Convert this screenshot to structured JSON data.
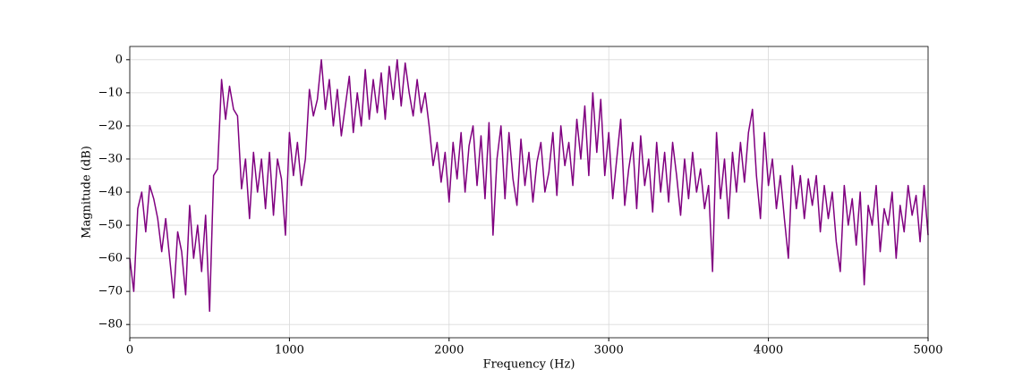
{
  "chart_data": {
    "type": "line",
    "xlabel": "Frequency (Hz)",
    "ylabel": "Magnitude (dB)",
    "x": [
      0,
      25,
      50,
      75,
      100,
      125,
      150,
      175,
      200,
      225,
      250,
      275,
      300,
      325,
      350,
      375,
      400,
      425,
      450,
      475,
      500,
      525,
      550,
      575,
      600,
      625,
      650,
      675,
      700,
      725,
      750,
      775,
      800,
      825,
      850,
      875,
      900,
      925,
      950,
      975,
      1000,
      1025,
      1050,
      1075,
      1100,
      1125,
      1150,
      1175,
      1200,
      1225,
      1250,
      1275,
      1300,
      1325,
      1350,
      1375,
      1400,
      1425,
      1450,
      1475,
      1500,
      1525,
      1550,
      1575,
      1600,
      1625,
      1650,
      1675,
      1700,
      1725,
      1750,
      1775,
      1800,
      1825,
      1850,
      1875,
      1900,
      1925,
      1950,
      1975,
      2000,
      2025,
      2050,
      2075,
      2100,
      2125,
      2150,
      2175,
      2200,
      2225,
      2250,
      2275,
      2300,
      2325,
      2350,
      2375,
      2400,
      2425,
      2450,
      2475,
      2500,
      2525,
      2550,
      2575,
      2600,
      2625,
      2650,
      2675,
      2700,
      2725,
      2750,
      2775,
      2800,
      2825,
      2850,
      2875,
      2900,
      2925,
      2950,
      2975,
      3000,
      3025,
      3050,
      3075,
      3100,
      3125,
      3150,
      3175,
      3200,
      3225,
      3250,
      3275,
      3300,
      3325,
      3350,
      3375,
      3400,
      3425,
      3450,
      3475,
      3500,
      3525,
      3550,
      3575,
      3600,
      3625,
      3650,
      3675,
      3700,
      3725,
      3750,
      3775,
      3800,
      3825,
      3850,
      3875,
      3900,
      3925,
      3950,
      3975,
      4000,
      4025,
      4050,
      4075,
      4100,
      4125,
      4150,
      4175,
      4200,
      4225,
      4250,
      4275,
      4300,
      4325,
      4350,
      4375,
      4400,
      4425,
      4450,
      4475,
      4500,
      4525,
      4550,
      4575,
      4600,
      4625,
      4650,
      4675,
      4700,
      4725,
      4750,
      4775,
      4800,
      4825,
      4850,
      4875,
      4900,
      4925,
      4950,
      4975,
      5000
    ],
    "series": [
      {
        "color": "#800080",
        "values": [
          -60,
          -70,
          -45,
          -40,
          -52,
          -38,
          -42,
          -48,
          -58,
          -48,
          -60,
          -72,
          -52,
          -58,
          -71,
          -44,
          -60,
          -50,
          -64,
          -47,
          -76,
          -35,
          -33,
          -6,
          -18,
          -8,
          -15,
          -17,
          -39,
          -30,
          -48,
          -28,
          -40,
          -30,
          -45,
          -28,
          -47,
          -30,
          -36,
          -53,
          -22,
          -35,
          -25,
          -38,
          -30,
          -9,
          -17,
          -12,
          0,
          -15,
          -6,
          -20,
          -9,
          -23,
          -14,
          -5,
          -22,
          -10,
          -20,
          -3,
          -18,
          -6,
          -16,
          -4,
          -18,
          -2,
          -12,
          0,
          -14,
          -1,
          -10,
          -17,
          -6,
          -16,
          -10,
          -20,
          -32,
          -25,
          -37,
          -28,
          -43,
          -25,
          -36,
          -22,
          -40,
          -26,
          -20,
          -38,
          -23,
          -42,
          -19,
          -53,
          -30,
          -20,
          -42,
          -22,
          -36,
          -44,
          -24,
          -38,
          -28,
          -43,
          -31,
          -25,
          -40,
          -34,
          -22,
          -41,
          -20,
          -32,
          -25,
          -38,
          -18,
          -30,
          -14,
          -35,
          -10,
          -28,
          -12,
          -35,
          -22,
          -42,
          -30,
          -18,
          -44,
          -33,
          -25,
          -45,
          -23,
          -38,
          -30,
          -46,
          -25,
          -40,
          -28,
          -43,
          -25,
          -35,
          -47,
          -30,
          -42,
          -28,
          -40,
          -33,
          -45,
          -38,
          -64,
          -22,
          -42,
          -30,
          -48,
          -28,
          -40,
          -25,
          -37,
          -22,
          -15,
          -35,
          -48,
          -22,
          -38,
          -30,
          -45,
          -35,
          -48,
          -60,
          -32,
          -45,
          -35,
          -48,
          -36,
          -44,
          -35,
          -52,
          -38,
          -48,
          -40,
          -55,
          -64,
          -38,
          -50,
          -42,
          -56,
          -40,
          -68,
          -44,
          -50,
          -38,
          -58,
          -45,
          -50,
          -40,
          -60,
          -44,
          -52,
          -38,
          -47,
          -41,
          -55,
          -38,
          -53
        ]
      }
    ],
    "xlim": [
      0,
      5000
    ],
    "xticks": [
      0,
      1000,
      2000,
      3000,
      4000,
      5000
    ],
    "ylim": [
      -84,
      4
    ],
    "yticks": [
      {
        "value": -80,
        "label": "−80"
      },
      {
        "value": -70,
        "label": "−70"
      },
      {
        "value": -60,
        "label": "−60"
      },
      {
        "value": -50,
        "label": "−50"
      },
      {
        "value": -40,
        "label": "−40"
      },
      {
        "value": -30,
        "label": "−30"
      },
      {
        "value": -20,
        "label": "−20"
      },
      {
        "value": -10,
        "label": "−10"
      },
      0
    ],
    "grid": true
  }
}
